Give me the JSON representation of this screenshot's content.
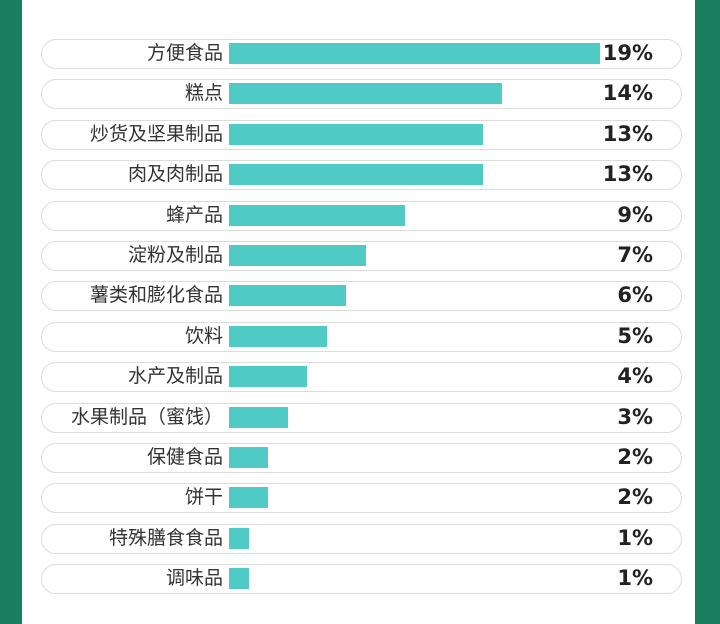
{
  "chart_data": {
    "type": "bar",
    "orientation": "horizontal",
    "categories": [
      "方便食品",
      "糕点",
      "炒货及坚果制品",
      "肉及肉制品",
      "蜂产品",
      "淀粉及制品",
      "薯类和膨化食品",
      "饮料",
      "水产及制品",
      "水果制品（蜜饯）",
      "保健食品",
      "饼干",
      "特殊膳食食品",
      "调味品"
    ],
    "values": [
      19,
      14,
      13,
      13,
      9,
      7,
      6,
      5,
      4,
      3,
      2,
      2,
      1,
      1
    ],
    "value_labels": [
      "19%",
      "14%",
      "13%",
      "13%",
      "9%",
      "7%",
      "6%",
      "5%",
      "4%",
      "3%",
      "2%",
      "2%",
      "1%",
      "1%"
    ],
    "unit": "%",
    "title": "",
    "xlabel": "",
    "ylabel": "",
    "xlim": [
      0,
      19
    ],
    "grid": false,
    "legend": "none",
    "bar_color": "#4fcac4",
    "frame_color": "#1a7f5f"
  }
}
